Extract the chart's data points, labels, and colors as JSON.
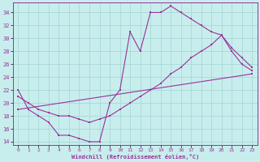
{
  "xlabel": "Windchill (Refroidissement éolien,°C)",
  "bg_color": "#c8eded",
  "grid_color": "#a8d8d8",
  "line_color": "#993399",
  "xlim": [
    -0.5,
    23.5
  ],
  "ylim": [
    13.5,
    35.5
  ],
  "xticks": [
    0,
    1,
    2,
    3,
    4,
    5,
    6,
    7,
    8,
    9,
    10,
    11,
    12,
    13,
    14,
    15,
    16,
    17,
    18,
    19,
    20,
    21,
    22,
    23
  ],
  "yticks": [
    14,
    16,
    18,
    20,
    22,
    24,
    26,
    28,
    30,
    32,
    34
  ],
  "curve1_x": [
    0,
    1,
    2,
    3,
    4,
    5,
    6,
    7,
    8,
    9,
    10,
    11,
    12,
    13,
    14,
    15,
    16,
    17,
    18,
    19,
    20,
    21,
    22,
    23
  ],
  "curve1_y": [
    22,
    19,
    18,
    17,
    15,
    15,
    14.5,
    14,
    14,
    20,
    22,
    31,
    28,
    34,
    34,
    35,
    34,
    33,
    32,
    31,
    30.5,
    28,
    26,
    25
  ],
  "curve2_x": [
    0,
    1,
    2,
    3,
    4,
    5,
    6,
    7,
    8,
    9,
    10,
    11,
    12,
    13,
    14,
    15,
    16,
    17,
    18,
    19,
    20,
    21,
    22,
    23
  ],
  "curve2_y": [
    21,
    20,
    19,
    18.5,
    18,
    18,
    17.5,
    17,
    17.5,
    18,
    19,
    20,
    21,
    22,
    23,
    24.5,
    25.5,
    27,
    28,
    29,
    30.5,
    28.5,
    27,
    25.5
  ],
  "curve3_x": [
    0,
    23
  ],
  "curve3_y": [
    19,
    24.5
  ]
}
